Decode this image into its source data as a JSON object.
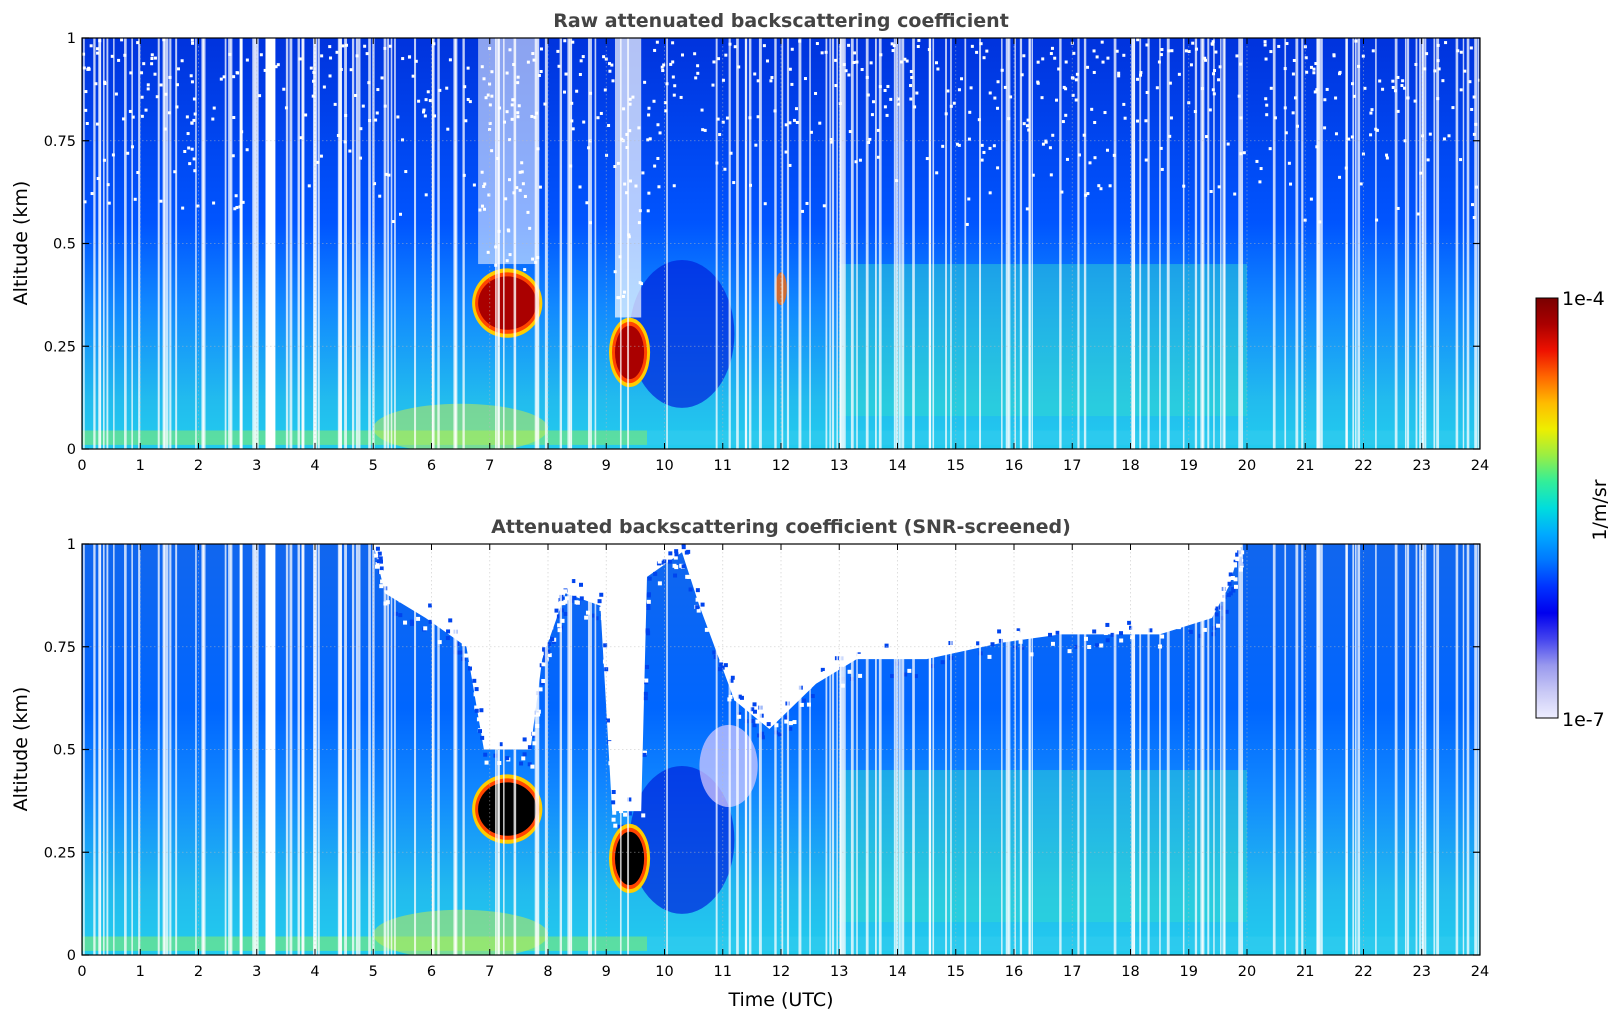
{
  "chart_data": [
    {
      "type": "heatmap",
      "title": "Raw attenuated backscattering coefficient",
      "xlabel": "",
      "ylabel": "Altitude (km)",
      "xlim": [
        0,
        24
      ],
      "ylim": [
        0,
        1
      ],
      "x_ticks": [
        "0",
        "1",
        "2",
        "3",
        "4",
        "5",
        "6",
        "7",
        "8",
        "9",
        "10",
        "11",
        "12",
        "13",
        "14",
        "15",
        "16",
        "17",
        "18",
        "19",
        "20",
        "21",
        "22",
        "23",
        "24"
      ],
      "y_ticks": [
        "0",
        "0.25",
        "0.5",
        "0.75",
        "1"
      ],
      "screened": false,
      "features": [
        {
          "x": [
            6.8,
            7.8
          ],
          "y": [
            0.29,
            0.42
          ],
          "level": "high"
        },
        {
          "x": [
            9.15,
            9.65
          ],
          "y": [
            0.17,
            0.3
          ],
          "level": "high"
        },
        {
          "x": [
            11.9,
            12.1
          ],
          "y": [
            0.35,
            0.43
          ],
          "level": "elevated"
        }
      ]
    },
    {
      "type": "heatmap",
      "title": "Attenuated backscattering coefficient (SNR-screened)",
      "xlabel": "Time (UTC)",
      "ylabel": "Altitude (km)",
      "xlim": [
        0,
        24
      ],
      "ylim": [
        0,
        1
      ],
      "x_ticks": [
        "0",
        "1",
        "2",
        "3",
        "4",
        "5",
        "6",
        "7",
        "8",
        "9",
        "10",
        "11",
        "12",
        "13",
        "14",
        "15",
        "16",
        "17",
        "18",
        "19",
        "20",
        "21",
        "22",
        "23",
        "24"
      ],
      "y_ticks": [
        "0",
        "0.25",
        "0.5",
        "0.75",
        "1"
      ],
      "screened": true,
      "features": [
        {
          "x": [
            6.8,
            7.8
          ],
          "y": [
            0.29,
            0.42
          ],
          "level": "saturated"
        },
        {
          "x": [
            9.15,
            9.65
          ],
          "y": [
            0.17,
            0.3
          ],
          "level": "saturated"
        }
      ]
    }
  ],
  "colorbar": {
    "label": "1/m/sr",
    "max_label": "1e-4",
    "min_label": "1e-7",
    "colors": [
      "#eeeeff",
      "#c8c8f5",
      "#9999ee",
      "#4444ee",
      "#0000ee",
      "#0033ff",
      "#0077ff",
      "#00aaff",
      "#00dddd",
      "#33ee99",
      "#99ee44",
      "#eeee00",
      "#ffbb00",
      "#ff6600",
      "#ee1100",
      "#aa0000",
      "#7a0000"
    ]
  }
}
